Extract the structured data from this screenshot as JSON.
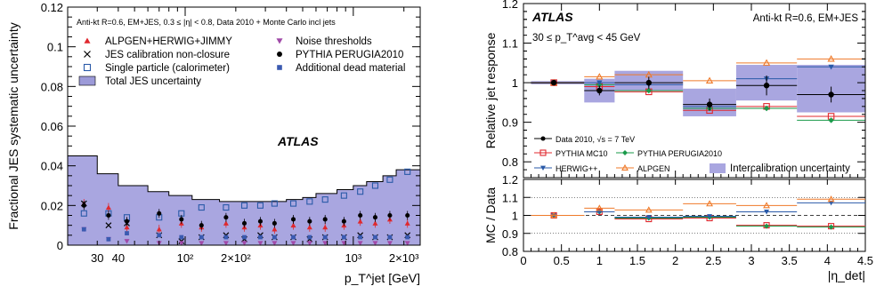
{
  "chart_data": [
    {
      "type": "scatter",
      "title": "",
      "xlabel": "p_T^jet [GeV]",
      "ylabel": "Fractional JES systematic uncertainty",
      "xscale": "log",
      "xlim": [
        20,
        2500
      ],
      "ylim": [
        0,
        0.12
      ],
      "x_tick_labels": [
        "30",
        "40",
        "10²",
        "2×10²",
        "10³",
        "2×10³"
      ],
      "y_tick_labels": [
        "0",
        "0.02",
        "0.04",
        "0.06",
        "0.08",
        "0.1",
        "0.12"
      ],
      "atlas_label": "ATLAS",
      "header": "Anti-kt R=0.6, EM+JES, 0.3 ≤ |η| < 0.8, Data 2010 + Monte Carlo incl jets",
      "legend": [
        {
          "name": "ALPGEN+HERWIG+JIMMY",
          "marker": "triangle-up",
          "color": "#e0282e"
        },
        {
          "name": "JES calibration non-closure",
          "marker": "x",
          "color": "#000000"
        },
        {
          "name": "Single particle (calorimeter)",
          "marker": "open-square",
          "color": "#2a5aa8"
        },
        {
          "name": "Total JES uncertainty",
          "marker": "band",
          "color": "#9c9ad8"
        },
        {
          "name": "Noise thresholds",
          "marker": "triangle-down",
          "color": "#a04aa8"
        },
        {
          "name": "PYTHIA PERUGIA2010",
          "marker": "dot",
          "color": "#000000"
        },
        {
          "name": "Additional dead material",
          "marker": "filled-square",
          "color": "#3a5ab0"
        }
      ],
      "total_band": {
        "edges": [
          20,
          30,
          40,
          60,
          80,
          110,
          160,
          210,
          260,
          310,
          400,
          500,
          600,
          800,
          1000,
          1200,
          1500,
          1800,
          2500
        ],
        "values": [
          0.045,
          0.036,
          0.03,
          0.027,
          0.025,
          0.023,
          0.022,
          0.022,
          0.022,
          0.022,
          0.023,
          0.024,
          0.026,
          0.028,
          0.03,
          0.032,
          0.035,
          0.038
        ]
      },
      "series": [
        {
          "name": "Single particle (calorimeter)",
          "x": [
            25,
            35,
            45,
            70,
            95,
            125,
            175,
            225,
            280,
            340,
            440,
            550,
            680,
            880,
            1100,
            1350,
            1650,
            2100
          ],
          "values": [
            0.016,
            0.016,
            0.014,
            0.014,
            0.016,
            0.019,
            0.019,
            0.02,
            0.02,
            0.021,
            0.021,
            0.022,
            0.023,
            0.025,
            0.027,
            0.03,
            0.033,
            0.037
          ]
        },
        {
          "name": "ALPGEN+HERWIG+JIMMY",
          "x": [
            25,
            35,
            45,
            70,
            95,
            125,
            175,
            225,
            280,
            340,
            440,
            550,
            680,
            880,
            1100,
            1350,
            1650,
            2100
          ],
          "values": [
            0.021,
            0.019,
            0.009,
            0.008,
            0.011,
            0.009,
            0.011,
            0.009,
            0.01,
            0.008,
            0.01,
            0.009,
            0.009,
            0.01,
            0.012,
            0.011,
            0.013,
            0.011
          ]
        },
        {
          "name": "PYTHIA PERUGIA2010",
          "x": [
            25,
            35,
            45,
            70,
            95,
            125,
            175,
            225,
            280,
            340,
            440,
            550,
            680,
            880,
            1100,
            1350,
            1650,
            2100
          ],
          "values": [
            0.02,
            0.015,
            0.012,
            0.016,
            0.013,
            0.01,
            0.014,
            0.011,
            0.012,
            0.011,
            0.013,
            0.012,
            0.013,
            0.012,
            0.015,
            0.014,
            0.015,
            0.015
          ]
        },
        {
          "name": "JES calibration non-closure",
          "x": [
            25,
            35,
            45,
            70,
            95,
            125,
            175,
            225,
            280,
            340,
            440,
            550,
            680,
            880,
            1100,
            1350,
            1650,
            2100
          ],
          "values": [
            0.021,
            0.01,
            0.011,
            0.005,
            0.002,
            0.004,
            0.005,
            0.003,
            0.005,
            0.004,
            0.004,
            0.003,
            0.004,
            0.004,
            0.005,
            0.004,
            0.004,
            0.005
          ]
        },
        {
          "name": "Noise thresholds",
          "x": [
            25,
            35,
            45,
            70,
            95,
            125,
            175,
            225,
            280,
            340,
            440,
            550,
            680,
            880,
            1100,
            1350,
            1650,
            2100
          ],
          "values": [
            0.008,
            0.003,
            0.002,
            0.001,
            0.001,
            0.001,
            0.001,
            0.001,
            0.001,
            0.001,
            0.001,
            0.001,
            0.001,
            0.001,
            0.001,
            0.001,
            0.001,
            0.001
          ]
        },
        {
          "name": "Additional dead material",
          "x": [
            25,
            35,
            45,
            70,
            95,
            125,
            175,
            225,
            280,
            340,
            440,
            550,
            680,
            880,
            1100,
            1350,
            1650,
            2100
          ],
          "values": [
            0.008,
            0.003,
            0.006,
            0.005,
            0.004,
            0.004,
            0.004,
            0.004,
            0.004,
            0.004,
            0.004,
            0.004,
            0.004,
            0.004,
            0.004,
            0.004,
            0.004,
            0.004
          ]
        }
      ]
    },
    {
      "type": "line",
      "title": "",
      "xlabel": "|η_det|",
      "ylabel_top": "Relative jet response",
      "ylabel_bottom": "MC / Data",
      "xlim": [
        0,
        4.5
      ],
      "ylim_top": [
        0.76,
        1.2
      ],
      "ylim_bottom": [
        0.8,
        1.2
      ],
      "x_tick_labels": [
        "0",
        "0.5",
        "1",
        "1.5",
        "2",
        "2.5",
        "3",
        "3.5",
        "4",
        "4.5"
      ],
      "y_tick_labels_top": [
        "0.8",
        "0.9",
        "1",
        "1.1",
        "1.2"
      ],
      "y_tick_labels_bottom": [
        "0.8",
        "0.9",
        "1",
        "1.1",
        "1.2"
      ],
      "atlas_label": "ATLAS",
      "header": "Anti-kt R=0.6, EM+JES",
      "pt_range": "30 ≤ p_T^avg < 45 GeV",
      "bins": [
        [
          0.1,
          0.8
        ],
        [
          0.8,
          1.2
        ],
        [
          1.2,
          2.1
        ],
        [
          2.1,
          2.8
        ],
        [
          2.8,
          3.6
        ],
        [
          3.6,
          4.5
        ]
      ],
      "centers": [
        0.4,
        1.0,
        1.65,
        2.45,
        3.2,
        4.05
      ],
      "legend": [
        {
          "name": "Data 2010, √s = 7 TeV",
          "color": "#000000",
          "marker": "dot"
        },
        {
          "name": "PYTHIA MC10",
          "color": "#e0282e",
          "marker": "open-square"
        },
        {
          "name": "PYTHIA PERUGIA2010",
          "color": "#1a9a4a",
          "marker": "diamond"
        },
        {
          "name": "HERWIG++",
          "color": "#2a5aa8",
          "marker": "triangle-down"
        },
        {
          "name": "ALPGEN",
          "color": "#ef7a2a",
          "marker": "open-triangle"
        },
        {
          "name": "Intercalibration uncertainty",
          "color": "#9c9ad8",
          "marker": "band"
        }
      ],
      "band": {
        "values": [
          1.0,
          0.98,
          1.005,
          0.95,
          1.0,
          0.985
        ],
        "halfwidth": [
          0.004,
          0.03,
          0.025,
          0.035,
          0.045,
          0.06
        ]
      },
      "series": [
        {
          "name": "Data 2010",
          "values": [
            1.0,
            0.98,
            1.0,
            0.945,
            0.993,
            0.97
          ],
          "err": [
            0.003,
            0.012,
            0.015,
            0.015,
            0.025,
            0.02
          ]
        },
        {
          "name": "PYTHIA MC10",
          "values": [
            1.0,
            0.99,
            0.977,
            0.93,
            0.94,
            0.915
          ]
        },
        {
          "name": "PYTHIA PERUGIA2010",
          "values": [
            1.0,
            0.995,
            0.98,
            0.935,
            0.935,
            0.905
          ]
        },
        {
          "name": "HERWIG++",
          "values": [
            1.0,
            1.0,
            0.995,
            0.94,
            1.01,
            1.04
          ]
        },
        {
          "name": "ALPGEN",
          "values": [
            1.0,
            1.015,
            1.02,
            1.005,
            1.05,
            1.06
          ]
        }
      ],
      "ratio": [
        {
          "name": "PYTHIA MC10",
          "values": [
            1.0,
            1.02,
            0.98,
            0.985,
            0.945,
            0.94
          ]
        },
        {
          "name": "PYTHIA PERUGIA2010",
          "values": [
            1.0,
            1.02,
            0.985,
            0.99,
            0.94,
            0.935
          ]
        },
        {
          "name": "HERWIG++",
          "values": [
            1.0,
            1.02,
            0.99,
            0.995,
            1.02,
            1.07
          ]
        },
        {
          "name": "ALPGEN",
          "values": [
            1.0,
            1.04,
            1.03,
            1.065,
            1.055,
            1.09
          ]
        }
      ]
    }
  ]
}
